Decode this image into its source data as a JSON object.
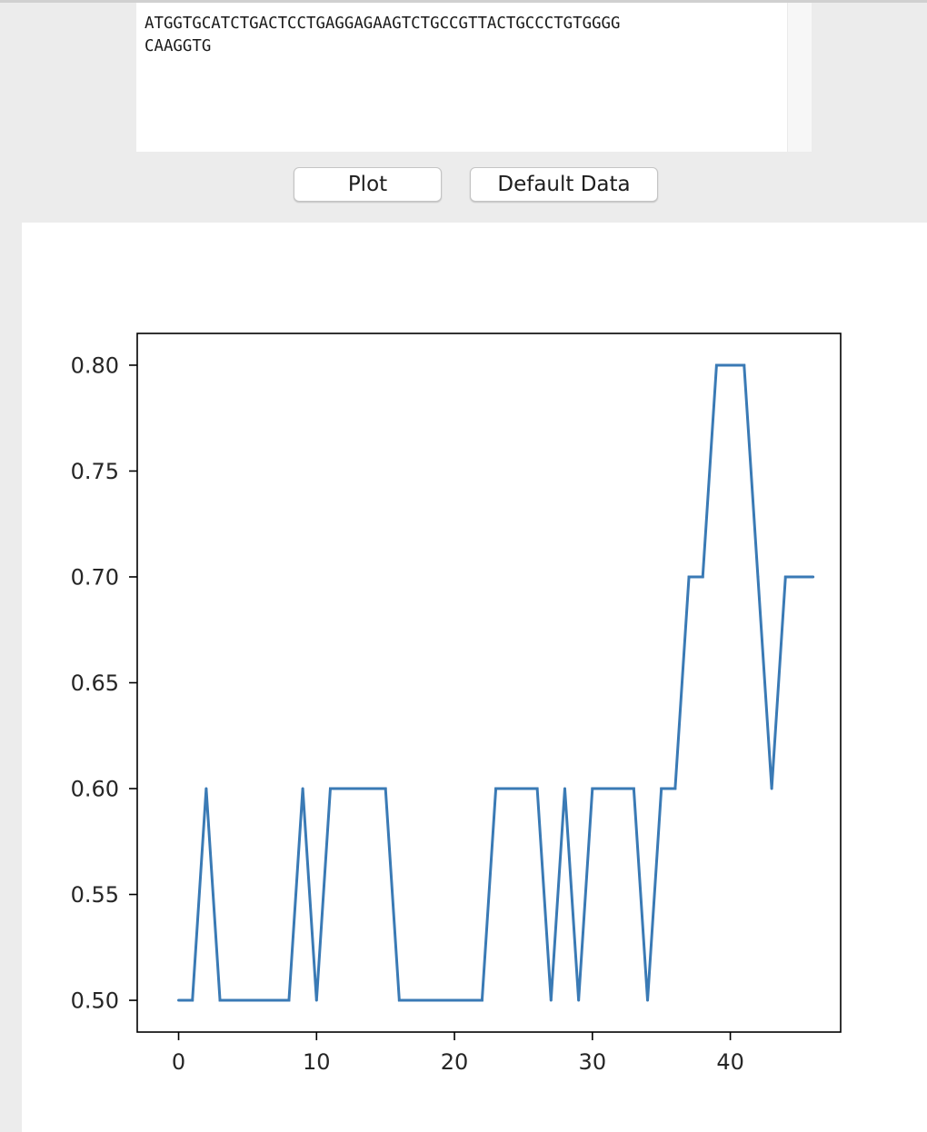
{
  "sequence_input": {
    "line1": "ATGGTGCATCTGACTCCTGAGGAGAAGTCTGCCGTTACTGCCCTGTGGGG",
    "line2": "CAAGGTG"
  },
  "buttons": {
    "plot_label": "Plot",
    "default_data_label": "Default Data"
  },
  "colors": {
    "line": "#3a7ab5",
    "window_bg": "#ececec",
    "figure_bg": "#ffffff"
  },
  "chart_data": {
    "type": "line",
    "title": "",
    "xlabel": "",
    "ylabel": "",
    "xlim": [
      -3,
      48
    ],
    "ylim": [
      0.485,
      0.815
    ],
    "x_ticks": [
      0,
      10,
      20,
      30,
      40
    ],
    "y_ticks": [
      0.5,
      0.55,
      0.6,
      0.65,
      0.7,
      0.75,
      0.8
    ],
    "x_tick_labels": [
      "0",
      "10",
      "20",
      "30",
      "40"
    ],
    "y_tick_labels": [
      "0.50",
      "0.55",
      "0.60",
      "0.65",
      "0.70",
      "0.75",
      "0.80"
    ],
    "grid": false,
    "legend": "none",
    "series": [
      {
        "x": [
          0,
          1,
          2,
          3,
          4,
          5,
          6,
          7,
          8,
          9,
          10,
          11,
          12,
          13,
          14,
          15,
          16,
          17,
          18,
          19,
          20,
          21,
          22,
          23,
          24,
          25,
          26,
          27,
          28,
          29,
          30,
          31,
          32,
          33,
          34,
          35,
          36,
          37,
          38,
          39,
          40,
          41,
          42,
          43,
          44,
          45,
          46
        ],
        "values": [
          0.5,
          0.5,
          0.6,
          0.5,
          0.5,
          0.5,
          0.5,
          0.5,
          0.5,
          0.6,
          0.5,
          0.6,
          0.6,
          0.6,
          0.6,
          0.6,
          0.5,
          0.5,
          0.5,
          0.5,
          0.5,
          0.5,
          0.5,
          0.6,
          0.6,
          0.6,
          0.6,
          0.5,
          0.6,
          0.5,
          0.6,
          0.6,
          0.6,
          0.6,
          0.5,
          0.6,
          0.6,
          0.7,
          0.7,
          0.8,
          0.8,
          0.8,
          0.7,
          0.6,
          0.7,
          0.7,
          0.7
        ]
      }
    ]
  }
}
